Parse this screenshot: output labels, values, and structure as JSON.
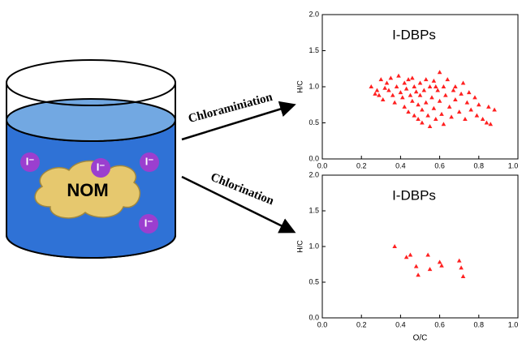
{
  "diagram": {
    "nom_label": "NOM",
    "ion_label": "I⁻",
    "arrow_top_label": "Chloraminiation",
    "arrow_bottom_label": "Chlorination"
  },
  "chart_data": [
    {
      "type": "scatter",
      "title": "I-DBPs",
      "y_label": "H/C",
      "color": "#ff2020",
      "marker": "triangle",
      "xlim": [
        0,
        1
      ],
      "ylim": [
        0,
        2
      ],
      "xticks": [
        {
          "value": 0,
          "label": "0.0"
        },
        0.2,
        0.4,
        0.6,
        0.8,
        {
          "value": 1,
          "label": "1.0"
        }
      ],
      "yticks": [
        {
          "value": 0,
          "label": "0.0"
        },
        0.5,
        {
          "value": 1,
          "label": "1.0"
        },
        1.5,
        {
          "value": 2,
          "label": "2.0"
        }
      ],
      "x": [
        0.25,
        0.28,
        0.29,
        0.3,
        0.31,
        0.33,
        0.34,
        0.35,
        0.36,
        0.37,
        0.38,
        0.39,
        0.4,
        0.41,
        0.42,
        0.42,
        0.43,
        0.44,
        0.44,
        0.45,
        0.46,
        0.47,
        0.47,
        0.48,
        0.49,
        0.49,
        0.5,
        0.5,
        0.51,
        0.51,
        0.52,
        0.53,
        0.53,
        0.54,
        0.55,
        0.55,
        0.56,
        0.57,
        0.57,
        0.58,
        0.59,
        0.6,
        0.6,
        0.61,
        0.62,
        0.62,
        0.63,
        0.64,
        0.65,
        0.66,
        0.67,
        0.68,
        0.68,
        0.7,
        0.71,
        0.72,
        0.73,
        0.74,
        0.75,
        0.76,
        0.78,
        0.79,
        0.8,
        0.82,
        0.84,
        0.85,
        0.86,
        0.88,
        0.27,
        0.32,
        0.46,
        0.58
      ],
      "y": [
        1.0,
        0.95,
        0.88,
        1.1,
        0.82,
        1.05,
        0.95,
        1.12,
        0.88,
        0.78,
        1.0,
        1.15,
        0.92,
        0.85,
        1.05,
        0.72,
        0.97,
        1.1,
        0.65,
        0.88,
        0.8,
        1.0,
        0.6,
        0.93,
        0.75,
        0.55,
        1.05,
        0.88,
        0.68,
        0.5,
        0.95,
        1.1,
        0.78,
        0.6,
        1.0,
        0.45,
        0.85,
        1.08,
        0.7,
        0.55,
        0.95,
        1.2,
        0.8,
        0.62,
        1.0,
        0.48,
        0.88,
        1.1,
        0.72,
        0.58,
        0.95,
        1.0,
        0.82,
        0.65,
        0.9,
        1.05,
        0.55,
        0.78,
        0.92,
        0.68,
        0.85,
        0.6,
        0.75,
        0.55,
        0.5,
        0.72,
        0.48,
        0.68,
        0.9,
        0.98,
        1.12,
        1.0
      ]
    },
    {
      "type": "scatter",
      "title": "I-DBPs",
      "y_label": "H/C",
      "x_label": "O/C",
      "color": "#ff2020",
      "marker": "triangle",
      "xlim": [
        0,
        1
      ],
      "ylim": [
        0,
        2
      ],
      "xticks": [
        {
          "value": 0,
          "label": "0.0"
        },
        0.2,
        0.4,
        0.6,
        0.8,
        {
          "value": 1,
          "label": "1.0"
        }
      ],
      "yticks": [
        {
          "value": 0,
          "label": "0.0"
        },
        0.5,
        {
          "value": 1,
          "label": "1.0"
        },
        1.5,
        {
          "value": 2,
          "label": "2.0"
        }
      ],
      "x": [
        0.37,
        0.43,
        0.45,
        0.48,
        0.49,
        0.54,
        0.55,
        0.6,
        0.61,
        0.7,
        0.71,
        0.72
      ],
      "y": [
        1.0,
        0.85,
        0.88,
        0.72,
        0.6,
        0.88,
        0.68,
        0.78,
        0.73,
        0.8,
        0.7,
        0.58
      ]
    }
  ]
}
